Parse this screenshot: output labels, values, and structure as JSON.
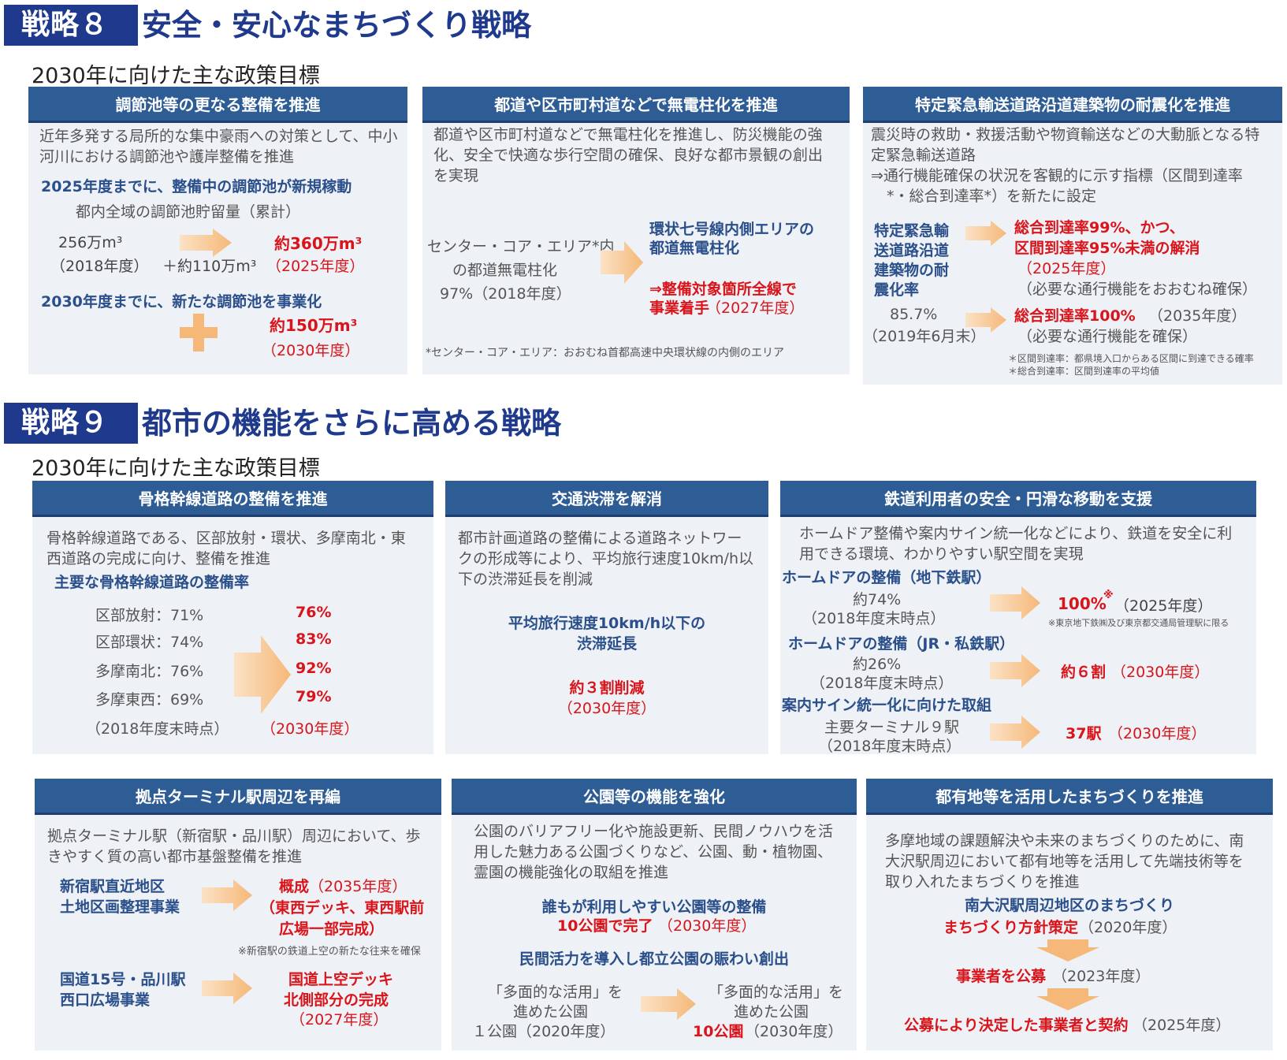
{
  "s8": {
    "label": "戦略８",
    "title": "安全・安心なまちづくり戦略",
    "subtitle": "2030年に向けた主な政策目標",
    "p1": {
      "header": "調節池等の更なる整備を推進",
      "desc": "近年多発する局所的な集中豪雨への対策として、中小河川における調節池や護岸整備を推進",
      "goal1": "2025年度までに、整備中の調節池が新規稼動",
      "metric": "都内全域の調節池貯留量（累計）",
      "base_val": "256万m³",
      "base_year": "（2018年度）",
      "increment": "＋約110万m³",
      "target_val": "約360万m³",
      "target_year": "（2025年度）",
      "goal2": "2030年度までに、新たな調節池を事業化",
      "target2_val": "約150万m³",
      "target2_year": "（2030年度）"
    },
    "p2": {
      "header": "都道や区市町村道などで無電柱化を推進",
      "desc": "都道や区市町村道などで無電柱化を推進し、防災機能の強化、安全で快適な歩行空間の確保、良好な都市景観の創出を実現",
      "base_line1": "センター・コア・エリア*内",
      "base_line2": "の都道無電柱化",
      "base_line3": "97%（2018年度）",
      "target_line1": "環状七号線内側エリアの",
      "target_line2": "都道無電柱化",
      "target_line3": "⇒整備対象箇所全線で",
      "target_line4": "事業着手",
      "target_year": "（2027年度）",
      "note": "*センター・コア・エリア：おおむね首都高速中央環状線の内側のエリア"
    },
    "p3": {
      "header": "特定緊急輸送道路沿道建築物の耐震化を推進",
      "desc1": "震災時の救助・救援活動や物資輸送などの大動脈となる特定緊急輸送道路",
      "desc2": "⇒通行機能確保の状況を客観的に示す指標（区間到達率*・総合到達率*）を新たに設定",
      "metric_l1": "特定緊急輸",
      "metric_l2": "送道路沿道",
      "metric_l3": "建築物の耐",
      "metric_l4": "震化率",
      "base_val": "85.7%",
      "base_year": "（2019年6月末）",
      "t1_l1": "総合到達率99%、かつ、",
      "t1_l2": "区間到達率95%未満の解消",
      "t1_year": "（2025年度）",
      "t1_note": "（必要な通行機能をおおむね確保）",
      "t2_val": "総合到達率100%",
      "t2_year": "（2035年度）",
      "t2_note": "（必要な通行機能を確保）",
      "fn1": "＊区間到達率：都県境入口からある区間に到達できる確率",
      "fn2": "＊総合到達率：区間到達率の平均値"
    }
  },
  "s9": {
    "label": "戦略９",
    "title": "都市の機能をさらに高める戦略",
    "subtitle": "2030年に向けた主な政策目標",
    "p1": {
      "header": "骨格幹線道路の整備を推進",
      "desc": "骨格幹線道路である、区部放射・環状、多摩南北・東西道路の完成に向け、整備を推進",
      "metric": "主要な骨格幹線道路の整備率",
      "rows": [
        {
          "label": "区部放射：71%",
          "target": "76%"
        },
        {
          "label": "区部環状：74%",
          "target": "83%"
        },
        {
          "label": "多摩南北：76%",
          "target": "92%"
        },
        {
          "label": "多摩東西：69%",
          "target": "79%"
        }
      ],
      "base_year": "（2018年度末時点）",
      "target_year": "（2030年度）"
    },
    "p2": {
      "header": "交通渋滞を解消",
      "desc": "都市計画道路の整備による道路ネットワークの形成等により、平均旅行速度10km/h以下の渋滞延長を削減",
      "metric_l1": "平均旅行速度10km/h以下の",
      "metric_l2": "渋滞延長",
      "target": "約３割削減",
      "target_year": "（2030年度）"
    },
    "p3": {
      "header": "鉄道利用者の安全・円滑な移動を支援",
      "desc": "ホームドア整備や案内サイン統一化などにより、鉄道を安全に利用できる環境、わかりやすい駅空間を実現",
      "i1_title": "ホームドアの整備（地下鉄駅）",
      "i1_base": "約74%",
      "i1_base_year": "（2018年度末時点）",
      "i1_target": "100%",
      "i1_mark": "※",
      "i1_year": "（2025年度）",
      "i1_note": "※東京地下鉄㈱及び東京都交通局管理駅に限る",
      "i2_title": "ホームドアの整備（JR・私鉄駅）",
      "i2_base": "約26%",
      "i2_base_year": "（2018年度末時点）",
      "i2_target": "約６割",
      "i2_year": "（2030年度）",
      "i3_title": "案内サイン統一化に向けた取組",
      "i3_base": "主要ターミナル９駅",
      "i3_base_year": "（2018年度末時点）",
      "i3_target": "37駅",
      "i3_year": "（2030年度）"
    },
    "p4": {
      "header": "拠点ターミナル駅周辺を再編",
      "desc": "拠点ターミナル駅（新宿駅・品川駅）周辺において、歩きやすく質の高い都市基盤整備を推進",
      "a_l1": "新宿駅直近地区",
      "a_l2": "土地区画整理事業",
      "a_t1": "概成",
      "a_year": "（2035年度）",
      "a_t2": "（東西デッキ、東西駅前",
      "a_t3": "広場一部完成）",
      "a_note": "※新宿駅の鉄道上空の新たな往来を確保",
      "b_l1": "国道15号・品川駅",
      "b_l2": "西口広場事業",
      "b_t1": "国道上空デッキ",
      "b_t2": "北側部分の完成",
      "b_year": "（2027年度）"
    },
    "p5": {
      "header": "公園等の機能を強化",
      "desc": "公園のバリアフリー化や施設更新、民間ノウハウを活用した魅力ある公園づくりなど、公園、動・植物園、霊園の機能強化の取組を推進",
      "g1": "誰もが利用しやすい公園等の整備",
      "g1_target": "10公園で完了",
      "g1_year": "（2030年度）",
      "g2": "民間活力を導入し都立公園の賑わい創出",
      "base_l1": "「多面的な活用」を",
      "base_l2": "進めた公園",
      "base_l3": "１公園（2020年度）",
      "tgt_l1": "「多面的な活用」を",
      "tgt_l2": "進めた公園",
      "tgt_val": "10公園",
      "tgt_year": "（2030年度）"
    },
    "p6": {
      "header": "都有地等を活用したまちづくりを推進",
      "desc": "多摩地域の課題解決や未来のまちづくりのために、南大沢駅周辺において都有地等を活用して先端技術等を取り入れたまちづくりを推進",
      "title": "南大沢駅周辺地区のまちづくり",
      "s1": "まちづくり方針策定",
      "s1_year": "（2020年度）",
      "s2": "事業者を公募",
      "s2_year": "（2023年度）",
      "s3": "公募により決定した事業者と契約",
      "s3_year": "（2025年度）"
    }
  },
  "colors": {
    "navy": "#1f3a8c",
    "header": "#2e5d96",
    "panel": "#eef1f6",
    "red": "#d9141a",
    "arrow": "#f6c18b"
  }
}
